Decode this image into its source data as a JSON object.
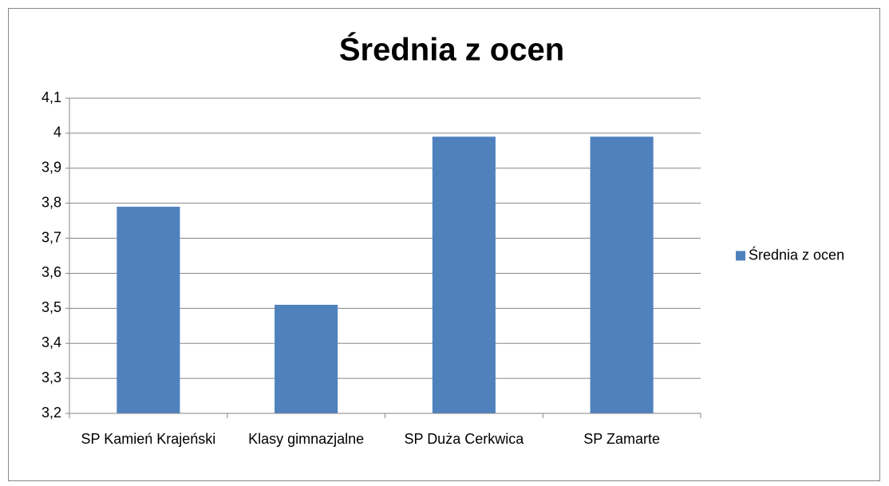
{
  "chart_data": {
    "type": "bar",
    "title": "Średnia z ocen",
    "categories": [
      "SP Kamień Krajeński",
      "Klasy gimnazjalne",
      "SP Duża Cerkwica",
      "SP Zamarte"
    ],
    "series": [
      {
        "name": "Średnia z ocen",
        "color": "#4f81bd",
        "values": [
          3.79,
          3.51,
          3.99,
          3.99
        ]
      }
    ],
    "ylim": [
      3.2,
      4.1
    ],
    "yticks": [
      {
        "value": 3.2,
        "label": "3,2"
      },
      {
        "value": 3.3,
        "label": "3,3"
      },
      {
        "value": 3.4,
        "label": "3,4"
      },
      {
        "value": 3.5,
        "label": "3,5"
      },
      {
        "value": 3.6,
        "label": "3,6"
      },
      {
        "value": 3.7,
        "label": "3,7"
      },
      {
        "value": 3.8,
        "label": "3,8"
      },
      {
        "value": 3.9,
        "label": "3,9"
      },
      4,
      {
        "value": 4.1,
        "label": "4,1"
      }
    ],
    "grid": true,
    "legend": "right"
  }
}
